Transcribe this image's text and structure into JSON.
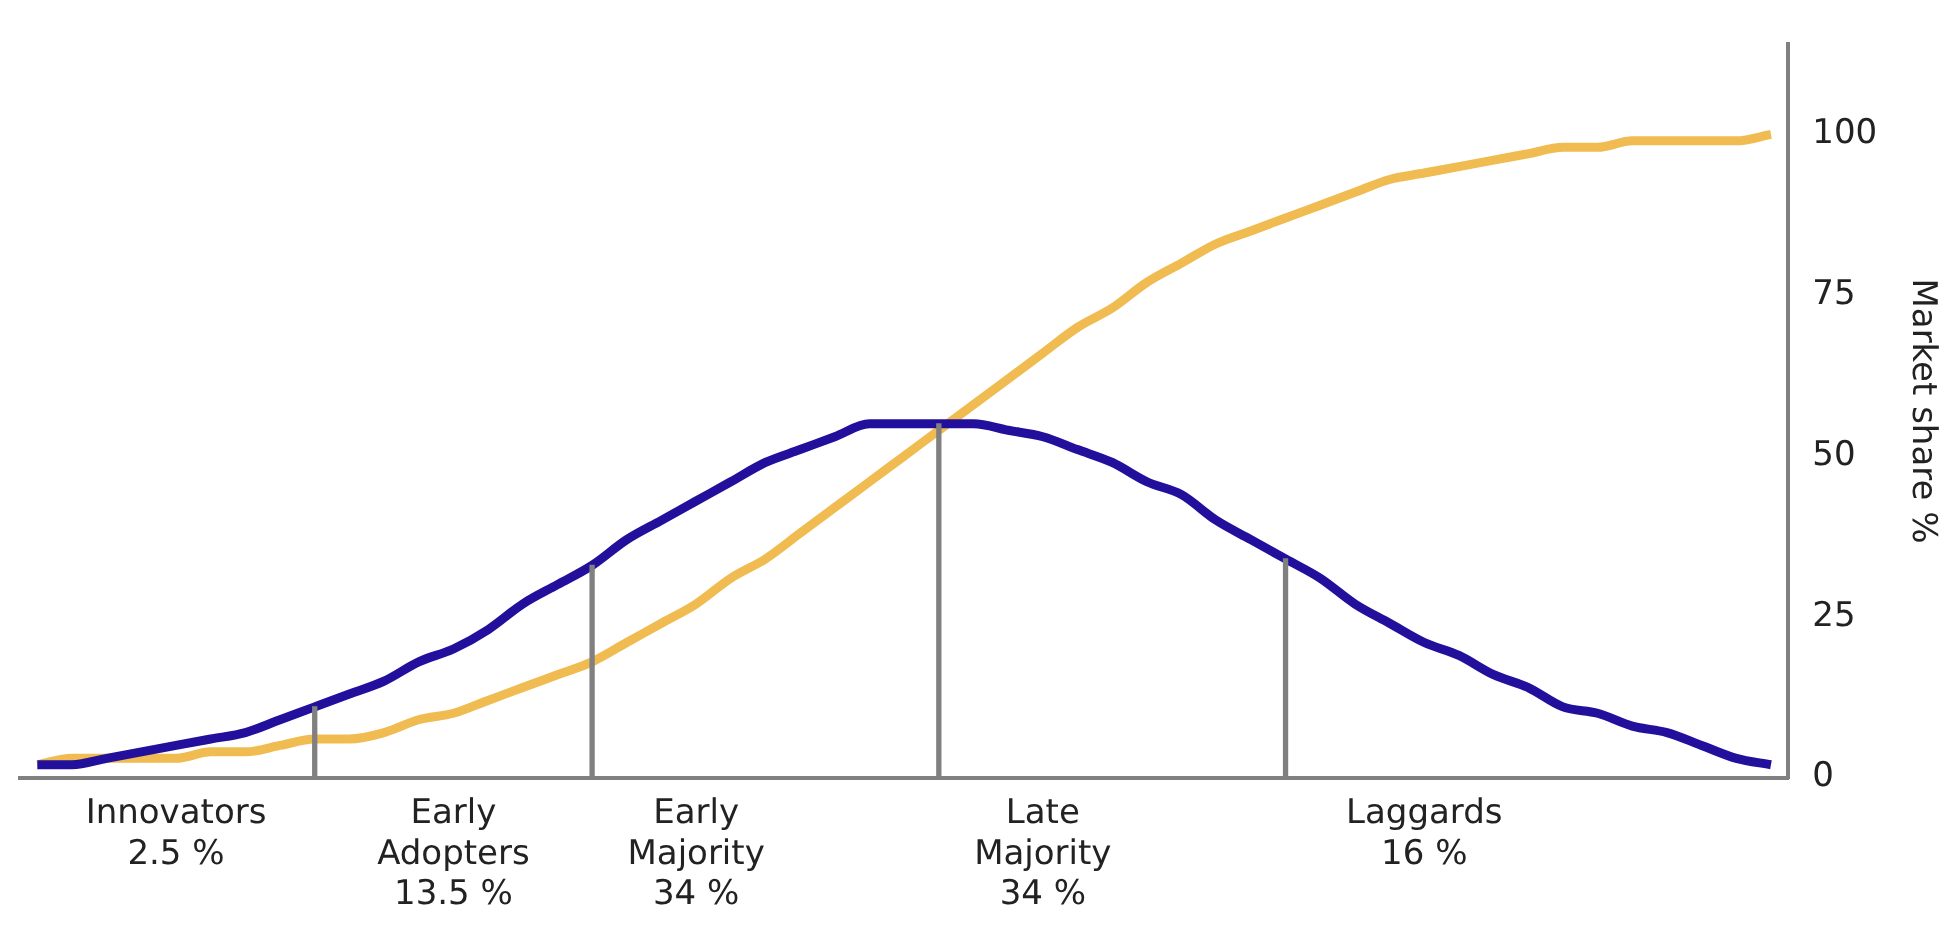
{
  "chart_data": {
    "type": "line",
    "categories": [
      null,
      null,
      null,
      null,
      "Innovators\n2.5 %",
      null,
      null,
      null,
      null,
      null,
      null,
      null,
      "Early\nAdopters\n13.5 %",
      null,
      null,
      null,
      null,
      null,
      null,
      "Early\nMajority\n34 %",
      null,
      null,
      null,
      null,
      null,
      null,
      null,
      null,
      null,
      "Late\nMajority\n34 %",
      null,
      null,
      null,
      null,
      null,
      null,
      null,
      null,
      null,
      null,
      "Laggards\n16 %",
      null,
      null,
      null,
      null,
      null,
      null,
      null,
      null,
      null,
      null
    ],
    "series": [
      {
        "color": "#22109c",
        "axis": "y2",
        "values": [
          2,
          2,
          3,
          4,
          5,
          6,
          7,
          9,
          11,
          13,
          15,
          18,
          20,
          23,
          27,
          30,
          33,
          37,
          40,
          43,
          46,
          49,
          51,
          53,
          55,
          55,
          55,
          55,
          54,
          53,
          51,
          49,
          46,
          44,
          40,
          37,
          34,
          31,
          27,
          24,
          21,
          19,
          16,
          14,
          11,
          10,
          8,
          7,
          5,
          3,
          2
        ]
      },
      {
        "color": "#f0bb50",
        "axis": "y2",
        "values": [
          2,
          3,
          3,
          3,
          3,
          4,
          4,
          5,
          6,
          6,
          7,
          9,
          10,
          12,
          14,
          16,
          18,
          21,
          24,
          27,
          31,
          34,
          38,
          42,
          46,
          50,
          54,
          58,
          62,
          66,
          70,
          73,
          77,
          80,
          83,
          85,
          87,
          89,
          91,
          93,
          94,
          95,
          96,
          97,
          98,
          98,
          99,
          99,
          99,
          99,
          100
        ]
      },
      {
        "type": "bar",
        "color": "#808080",
        "axis": "y2",
        "values": [
          null,
          null,
          null,
          null,
          null,
          null,
          null,
          null,
          11,
          null,
          null,
          null,
          null,
          null,
          null,
          null,
          33,
          null,
          null,
          null,
          null,
          null,
          null,
          null,
          null,
          null,
          55,
          null,
          null,
          null,
          null,
          null,
          null,
          null,
          null,
          null,
          34,
          null,
          null,
          null,
          null,
          null,
          null,
          null,
          null,
          null,
          null,
          null,
          null,
          null,
          null
        ]
      }
    ],
    "y2label": "Market share %",
    "y2lim": [
      0,
      114
    ],
    "y2ticks": [
      0,
      25,
      50,
      75,
      100
    ],
    "grid": false,
    "legend": false,
    "marker": "none",
    "line_style": "solid"
  }
}
